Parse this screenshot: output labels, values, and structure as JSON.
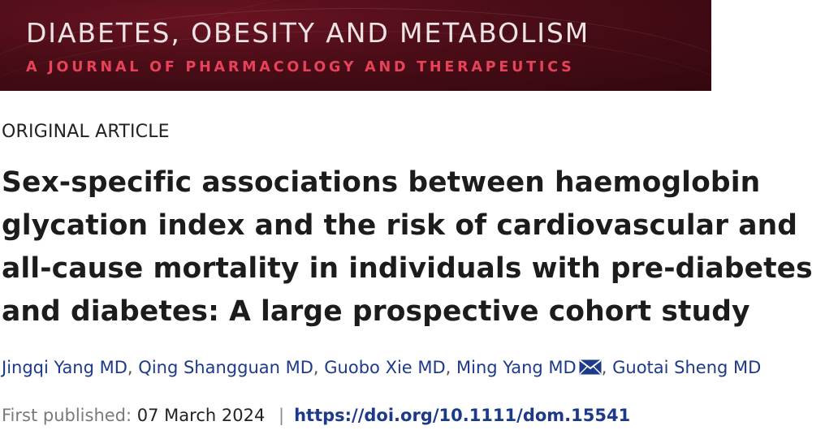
{
  "journal": {
    "title": "DIABETES, OBESITY AND METABOLISM",
    "subtitle": "A JOURNAL OF PHARMACOLOGY AND THERAPEUTICS"
  },
  "article": {
    "type": "ORIGINAL ARTICLE",
    "title": "Sex-specific associations between haemoglobin glycation index and the risk of cardiovascular and all-cause mortality in individuals with pre-diabetes and diabetes: A large prospective cohort study",
    "authors": [
      {
        "name": "Jingqi Yang MD"
      },
      {
        "name": "Qing Shangguan MD"
      },
      {
        "name": "Guobo Xie MD"
      },
      {
        "name": "Ming Yang MD",
        "icon": "envelope-icon"
      },
      {
        "name": "Guotai Sheng MD"
      }
    ],
    "author_separator": ",",
    "published_label": "First published:",
    "published_date": "07 March 2024",
    "pipe": "|",
    "doi": "https://doi.org/10.1111/dom.15541"
  },
  "colors": {
    "banner_bg": "#4a0d17",
    "journal_title": "#ece3e5",
    "journal_subtitle": "#e8425a",
    "link": "#1d3a8a"
  }
}
